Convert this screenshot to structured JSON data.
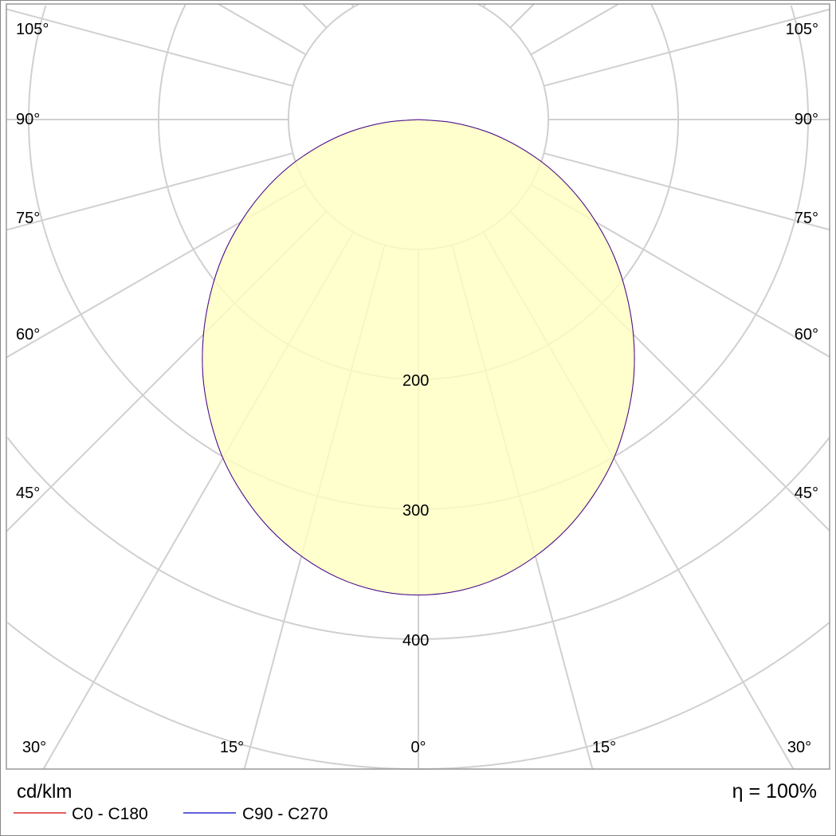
{
  "chart_data": {
    "type": "polar",
    "unit_label": "cd/klm",
    "efficiency_label": "η = 100%",
    "radial_ticks": [
      100,
      200,
      300,
      400,
      500,
      600
    ],
    "radial_tick_labels": [
      "200",
      "300",
      "400"
    ],
    "angle_labels_left": [
      "105°",
      "90°",
      "75°",
      "60°",
      "45°"
    ],
    "angle_labels_right": [
      "105°",
      "90°",
      "75°",
      "60°",
      "45°"
    ],
    "angle_labels_bottom": [
      "30°",
      "15°",
      "0°",
      "15°",
      "30°"
    ],
    "grid": true,
    "angles": [
      0,
      5,
      10,
      15,
      20,
      25,
      30,
      35,
      40,
      45,
      50,
      55,
      60,
      65,
      70,
      75,
      80,
      85,
      90
    ],
    "series": [
      {
        "name": "C0 - C180",
        "color": "#d00000",
        "values": [
          366,
          364,
          358,
          348,
          335,
          319,
          301,
          280,
          258,
          234,
          209,
          184,
          158,
          132,
          106,
          79,
          53,
          26,
          0
        ]
      },
      {
        "name": "C90 - C270",
        "color": "#0000c0",
        "values": [
          366,
          364,
          358,
          348,
          335,
          319,
          301,
          280,
          258,
          234,
          209,
          184,
          158,
          132,
          106,
          79,
          53,
          26,
          0
        ]
      }
    ],
    "fill_color": "#ffffc0",
    "grid_color": "#d0d0d0",
    "legend_position": "bottom-left"
  }
}
